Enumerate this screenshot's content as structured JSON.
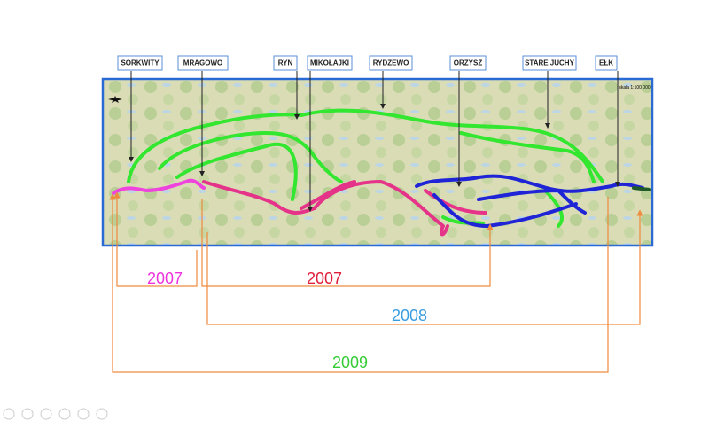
{
  "map": {
    "scale": "skala 1:100 000",
    "towns": [
      "SORKWITY",
      "MRĄGOWO",
      "RYN",
      "MIKOŁAJKI",
      "RYDZEWO",
      "ORZYSZ",
      "STARE JUCHY",
      "EŁK"
    ]
  },
  "periods": [
    {
      "year": "2007"
    },
    {
      "year": "2007"
    },
    {
      "year": "2008"
    },
    {
      "year": "2009"
    }
  ]
}
